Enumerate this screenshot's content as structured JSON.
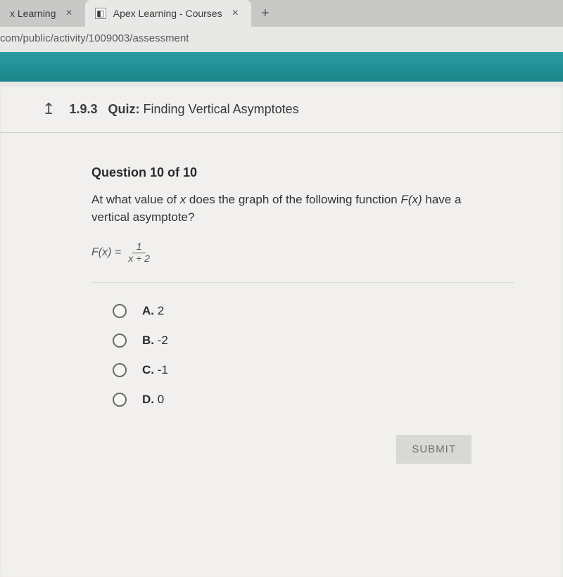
{
  "browser": {
    "tabs": [
      {
        "label": "x Learning",
        "active": false
      },
      {
        "label": "Apex Learning - Courses",
        "active": true
      }
    ],
    "url": "com/public/activity/1009003/assessment"
  },
  "quiz": {
    "section_number": "1.9.3",
    "section_label": "Quiz:",
    "section_title": "Finding Vertical Asymptotes"
  },
  "question": {
    "counter": "Question 10 of 10",
    "prompt_1": "At what value of ",
    "prompt_var": "x",
    "prompt_2": " does the graph of the following function ",
    "prompt_fn": "F(x)",
    "prompt_3": " have a vertical asymptote?",
    "formula_lhs": "F(x) =",
    "formula_numerator": "1",
    "formula_denominator": "x + 2"
  },
  "options": [
    {
      "letter": "A.",
      "value": "2"
    },
    {
      "letter": "B.",
      "value": "-2"
    },
    {
      "letter": "C.",
      "value": "-1"
    },
    {
      "letter": "D.",
      "value": "0"
    }
  ],
  "submit_label": "SUBMIT"
}
